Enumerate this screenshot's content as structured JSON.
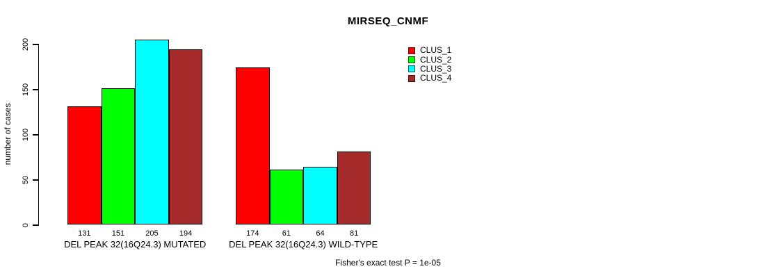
{
  "chart_data": {
    "type": "bar",
    "title": "MIRSEQ_CNMF",
    "ylabel": "number of cases",
    "xlabel": "",
    "ylim": [
      0,
      200
    ],
    "yticks": [
      "0",
      "50",
      "100",
      "150",
      "200"
    ],
    "ytick_values": [
      0,
      50,
      100,
      150,
      200
    ],
    "categories": [
      "DEL PEAK 32(16Q24.3) MUTATED",
      "DEL PEAK 32(16Q24.3) WILD-TYPE"
    ],
    "series": [
      {
        "name": "CLUS_1",
        "color": "#ff0000",
        "values": [
          131,
          174
        ]
      },
      {
        "name": "CLUS_2",
        "color": "#00ff00",
        "values": [
          151,
          61
        ]
      },
      {
        "name": "CLUS_3",
        "color": "#00ffff",
        "values": [
          205,
          64
        ]
      },
      {
        "name": "CLUS_4",
        "color": "#a52a2a",
        "values": [
          194,
          81
        ]
      }
    ],
    "bar_value_labels": [
      [
        "131",
        "151",
        "205",
        "194"
      ],
      [
        "174",
        "61",
        "64",
        "81"
      ]
    ],
    "legend": {
      "position": "top-right",
      "entries": [
        "CLUS_1",
        "CLUS_2",
        "CLUS_3",
        "CLUS_4"
      ]
    },
    "annotation": "Fisher's exact test P = 1e-05",
    "grid": false,
    "axis_color": "#000000",
    "text_color": "#000000",
    "background_color": "#ffffff"
  }
}
